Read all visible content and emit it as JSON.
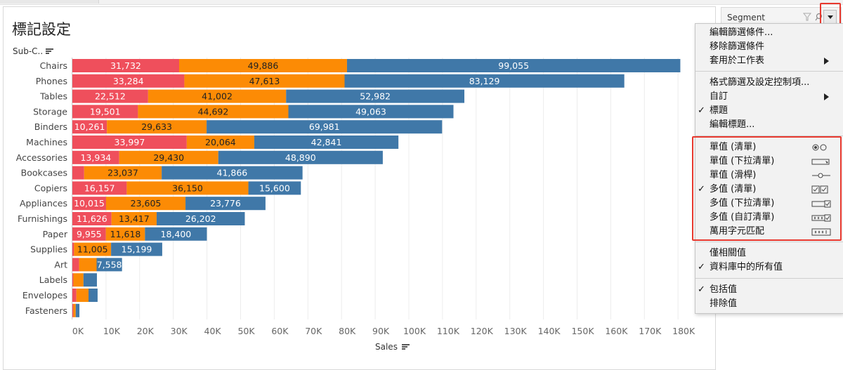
{
  "sheet": {
    "title": "標記設定"
  },
  "colors": {
    "seg1": "#ef4f5c",
    "seg2": "#fc8b05",
    "seg3": "#4078a8",
    "highlight": "#e8392f"
  },
  "chart_data": {
    "type": "bar",
    "orientation": "horizontal",
    "stacked": true,
    "ylabel": "Sub-C..",
    "xlabel": "Sales",
    "xlim": [
      0,
      185000
    ],
    "x_ticks": [
      "0K",
      "10K",
      "20K",
      "30K",
      "40K",
      "50K",
      "60K",
      "70K",
      "80K",
      "90K",
      "100K",
      "110K",
      "120K",
      "130K",
      "140K",
      "150K",
      "160K",
      "170K",
      "180K"
    ],
    "categories": [
      "Chairs",
      "Phones",
      "Tables",
      "Storage",
      "Binders",
      "Machines",
      "Accessories",
      "Bookcases",
      "Copiers",
      "Appliances",
      "Furnishings",
      "Paper",
      "Supplies",
      "Art",
      "Labels",
      "Envelopes",
      "Fasteners"
    ],
    "series": [
      {
        "values": [
          31732,
          33284,
          22512,
          19501,
          10261,
          33997,
          13934,
          3500,
          16157,
          10015,
          11626,
          9955,
          500,
          2000,
          300,
          1200,
          300
        ]
      },
      {
        "values": [
          49886,
          47613,
          41002,
          44692,
          29633,
          20064,
          29430,
          23037,
          36150,
          23605,
          13417,
          11618,
          11005,
          5200,
          3000,
          3600,
          700
        ]
      },
      {
        "values": [
          99055,
          83129,
          52982,
          49063,
          69981,
          42841,
          48890,
          41866,
          15600,
          23776,
          26202,
          18400,
          15199,
          7558,
          4000,
          2700,
          1100
        ]
      }
    ],
    "labels": [
      [
        "31,732",
        "49,886",
        "99,055"
      ],
      [
        "33,284",
        "47,613",
        "83,129"
      ],
      [
        "22,512",
        "41,002",
        "52,982"
      ],
      [
        "19,501",
        "44,692",
        "49,063"
      ],
      [
        "10,261",
        "29,633",
        "69,981"
      ],
      [
        "33,997",
        "20,064",
        "42,841"
      ],
      [
        "13,934",
        "29,430",
        "48,890"
      ],
      [
        "",
        "23,037",
        "41,866"
      ],
      [
        "16,157",
        "36,150",
        "15,600"
      ],
      [
        "10,015",
        "23,605",
        "23,776"
      ],
      [
        "11,626",
        "13,417",
        "26,202"
      ],
      [
        "9,955",
        "11,618",
        "18,400"
      ],
      [
        "",
        "11,005",
        "15,199"
      ],
      [
        "",
        "",
        "7,558"
      ],
      [
        "",
        "",
        ""
      ],
      [
        "",
        "",
        ""
      ],
      [
        "",
        "",
        ""
      ]
    ],
    "gridlines": "vertical",
    "legend": "none"
  },
  "filter_card": {
    "title": "Segment"
  },
  "menu": {
    "groups": [
      [
        {
          "label": "編輯篩選條件...",
          "checked": false,
          "submenu": false,
          "icon": ""
        },
        {
          "label": "移除篩選條件",
          "checked": false,
          "submenu": false,
          "icon": ""
        },
        {
          "label": "套用於工作表",
          "checked": false,
          "submenu": true,
          "icon": ""
        }
      ],
      [
        {
          "label": "格式篩選及設定控制項...",
          "checked": false,
          "submenu": false,
          "icon": ""
        },
        {
          "label": "自訂",
          "checked": false,
          "submenu": true,
          "icon": ""
        },
        {
          "label": "標題",
          "checked": true,
          "submenu": false,
          "icon": ""
        },
        {
          "label": "編輯標題...",
          "checked": false,
          "submenu": false,
          "icon": ""
        }
      ],
      [
        {
          "label": "單值 (清單)",
          "checked": false,
          "submenu": false,
          "icon": "radio-list-icon"
        },
        {
          "label": "單值 (下拉清單)",
          "checked": false,
          "submenu": false,
          "icon": "dropdown-icon"
        },
        {
          "label": "單值 (滑桿)",
          "checked": false,
          "submenu": false,
          "icon": "slider-icon"
        },
        {
          "label": "多值 (清單)",
          "checked": true,
          "submenu": false,
          "icon": "checkbox-list-icon"
        },
        {
          "label": "多值 (下拉清單)",
          "checked": false,
          "submenu": false,
          "icon": "multi-dropdown-icon"
        },
        {
          "label": "多值 (自訂清單)",
          "checked": false,
          "submenu": false,
          "icon": "custom-list-icon"
        },
        {
          "label": "萬用字元匹配",
          "checked": false,
          "submenu": false,
          "icon": "wildcard-icon"
        }
      ],
      [
        {
          "label": "僅相關值",
          "checked": false,
          "submenu": false,
          "icon": ""
        },
        {
          "label": "資料庫中的所有值",
          "checked": true,
          "submenu": false,
          "icon": ""
        }
      ],
      [
        {
          "label": "包括值",
          "checked": true,
          "submenu": false,
          "icon": ""
        },
        {
          "label": "排除值",
          "checked": false,
          "submenu": false,
          "icon": ""
        }
      ]
    ]
  }
}
